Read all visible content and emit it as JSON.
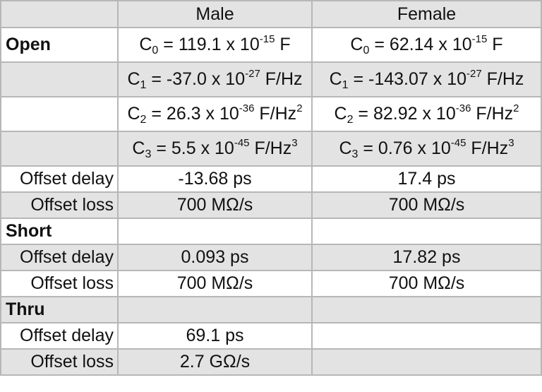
{
  "headers": {
    "blank": "",
    "male": "Male",
    "female": "Female"
  },
  "sections": {
    "open": {
      "label": "Open"
    },
    "short": {
      "label": "Short"
    },
    "thru": {
      "label": "Thru"
    }
  },
  "open": {
    "c0": {
      "male": {
        "sym": "C",
        "sub": "0",
        "pre": " = 119.1 x 10",
        "exp": "-15",
        "unit": " F",
        "unit_exp": ""
      },
      "female": {
        "sym": "C",
        "sub": "0",
        "pre": " = 62.14 x 10",
        "exp": "-15",
        "unit": " F",
        "unit_exp": ""
      }
    },
    "c1": {
      "male": {
        "sym": "C",
        "sub": "1",
        "pre": " = -37.0 x 10",
        "exp": "-27",
        "unit": " F/Hz",
        "unit_exp": ""
      },
      "female": {
        "sym": "C",
        "sub": "1",
        "pre": " = -143.07 x 10",
        "exp": "-27",
        "unit": " F/Hz",
        "unit_exp": ""
      }
    },
    "c2": {
      "male": {
        "sym": "C",
        "sub": "2",
        "pre": " = 26.3 x 10",
        "exp": "-36",
        "unit": " F/Hz",
        "unit_exp": "2"
      },
      "female": {
        "sym": "C",
        "sub": "2",
        "pre": " = 82.92 x 10",
        "exp": "-36",
        "unit": " F/Hz",
        "unit_exp": "2"
      }
    },
    "c3": {
      "male": {
        "sym": "C",
        "sub": "3",
        "pre": " = 5.5 x 10",
        "exp": "-45",
        "unit": " F/Hz",
        "unit_exp": "3"
      },
      "female": {
        "sym": "C",
        "sub": "3",
        "pre": " = 0.76 x 10",
        "exp": "-45",
        "unit": " F/Hz",
        "unit_exp": "3"
      }
    },
    "offset_delay": {
      "label": "Offset delay",
      "male": "-13.68 ps",
      "female": "17.4 ps"
    },
    "offset_loss": {
      "label": "Offset loss",
      "male": "700 MΩ/s",
      "female": "700 MΩ/s"
    }
  },
  "short": {
    "offset_delay": {
      "label": "Offset delay",
      "male": "0.093 ps",
      "female": "17.82 ps"
    },
    "offset_loss": {
      "label": "Offset loss",
      "male": "700 MΩ/s",
      "female": "700 MΩ/s"
    }
  },
  "thru": {
    "offset_delay": {
      "label": "Offset delay",
      "male": "69.1 ps",
      "female": ""
    },
    "offset_loss": {
      "label": "Offset loss",
      "male": "2.7 GΩ/s",
      "female": ""
    }
  },
  "colors": {
    "shade": "#e3e3e3",
    "border": "#b7b7b7",
    "white": "#ffffff"
  }
}
